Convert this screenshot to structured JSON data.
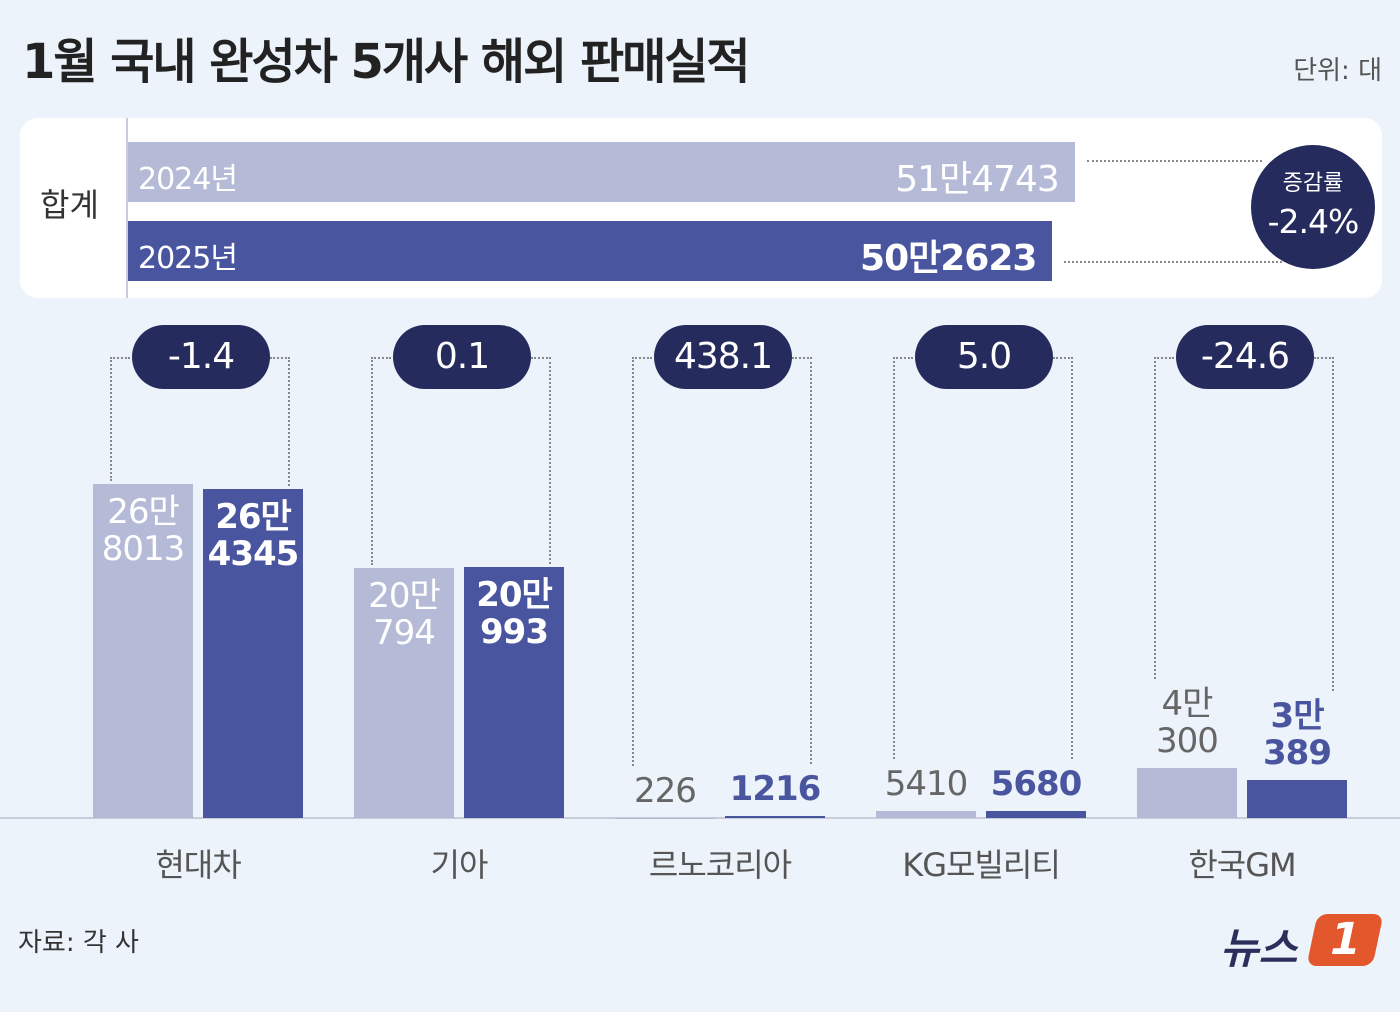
{
  "title": "1월 국내 완성차 5개사 해외 판매실적",
  "unit": "단위: 대",
  "source": "자료: 각 사",
  "logo": {
    "text": "뉴스",
    "mark": "1"
  },
  "total": {
    "label": "합계",
    "values": [
      514743,
      502623
    ],
    "value_labels": [
      "51만4743",
      "50만2623"
    ],
    "xlim": [
      0,
      560000
    ],
    "change_label": "증감률",
    "change": {
      "value": -2.4,
      "label": "-2.4%"
    }
  },
  "chart_data": {
    "type": "bar",
    "categories": [
      "현대차",
      "기아",
      "르노코리아",
      "KG모빌리티",
      "한국GM"
    ],
    "series": [
      {
        "name": "2024년",
        "color": "#b5bad6",
        "values": [
          268013,
          200794,
          226,
          5410,
          40300
        ],
        "value_labels": [
          "26만\n8013",
          "20만\n794",
          "226",
          "5410",
          "4만\n300"
        ]
      },
      {
        "name": "2025년",
        "color": "#4a55a0",
        "values": [
          264345,
          200993,
          1216,
          5680,
          30389
        ],
        "value_labels": [
          "26만\n4345",
          "20만\n993",
          "1216",
          "5680",
          "3만\n389"
        ]
      }
    ],
    "changes": [
      -1.4,
      0.1,
      438.1,
      {
        "value": 5,
        "label": "5.0"
      },
      -24.6
    ],
    "ylim": [
      0,
      280000
    ]
  }
}
